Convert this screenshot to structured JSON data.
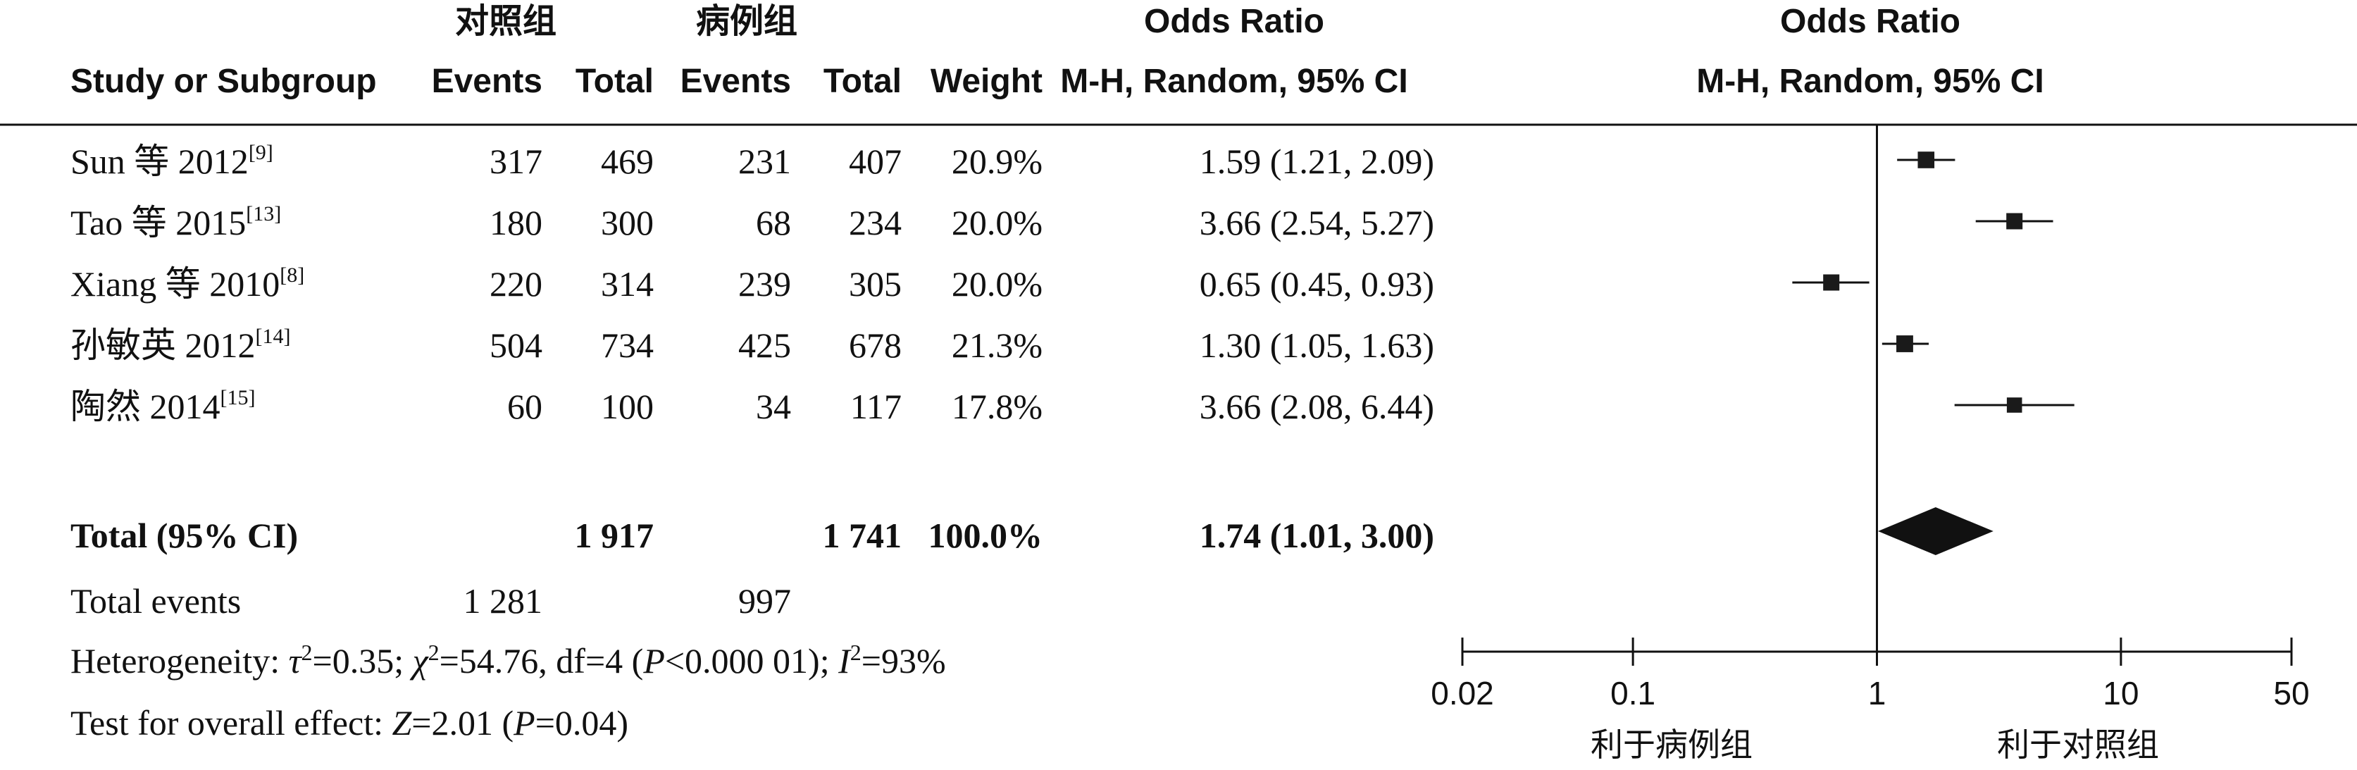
{
  "headers": {
    "study": "Study or Subgroup",
    "group_control": "对照组",
    "group_case": "病例组",
    "events": "Events",
    "total": "Total",
    "weight": "Weight",
    "odds_ratio": "Odds Ratio",
    "method": "M-H, Random, 95% CI"
  },
  "studies": [
    {
      "name": "Sun 等 2012",
      "ref": "[9]",
      "c_events": "317",
      "c_total": "469",
      "e_events": "231",
      "e_total": "407",
      "weight": "20.9%",
      "ci_text": "1.59 (1.21, 2.09)"
    },
    {
      "name": "Tao 等 2015",
      "ref": "[13]",
      "c_events": "180",
      "c_total": "300",
      "e_events": "68",
      "e_total": "234",
      "weight": "20.0%",
      "ci_text": "3.66 (2.54, 5.27)"
    },
    {
      "name": "Xiang 等 2010",
      "ref": "[8]",
      "c_events": "220",
      "c_total": "314",
      "e_events": "239",
      "e_total": "305",
      "weight": "20.0%",
      "ci_text": "0.65 (0.45, 0.93)"
    },
    {
      "name": "孙敏英 2012",
      "ref": "[14]",
      "c_events": "504",
      "c_total": "734",
      "e_events": "425",
      "e_total": "678",
      "weight": "21.3%",
      "ci_text": "1.30 (1.05, 1.63)"
    },
    {
      "name": "陶然 2014",
      "ref": "[15]",
      "c_events": "60",
      "c_total": "100",
      "e_events": "34",
      "e_total": "117",
      "weight": "17.8%",
      "ci_text": "3.66 (2.08, 6.44)"
    }
  ],
  "total": {
    "label": "Total (95% CI)",
    "c_total": "1 917",
    "e_total": "1 741",
    "weight": "100.0%",
    "ci_text": "1.74 (1.01, 3.00)"
  },
  "total_events": {
    "label": "Total events",
    "c_events": "1 281",
    "e_events": "997"
  },
  "heterogeneity": {
    "prefix": "Heterogeneity: ",
    "tau": "τ",
    "tau_value": "=0.35; ",
    "chi": "χ",
    "chi_value": "=54.76, df=4 (",
    "p": "P",
    "p_value": "<0.000 01); ",
    "i": "I",
    "i_value": "=93%",
    "sup": "2"
  },
  "overall_effect": {
    "prefix": "Test for overall effect: ",
    "z": "Z",
    "z_value": "=2.01 (",
    "p": "P",
    "p_value": "=0.04)"
  },
  "axis": {
    "ticks": [
      "0.02",
      "0.1",
      "1",
      "10",
      "50"
    ],
    "favours_left": "利于病例组",
    "favours_right": "利于对照组"
  },
  "colors": {
    "ink": "#111111",
    "marker": "#1a1a1a"
  },
  "chart_data": {
    "type": "forest",
    "scale": "log",
    "xlim": [
      0.02,
      50
    ],
    "x_ticks": [
      0.02,
      0.1,
      1,
      10,
      50
    ],
    "null_line": 1,
    "points": [
      {
        "or": 1.59,
        "lower": 1.21,
        "upper": 2.09,
        "weight": 20.9
      },
      {
        "or": 3.66,
        "lower": 2.54,
        "upper": 5.27,
        "weight": 20.0
      },
      {
        "or": 0.65,
        "lower": 0.45,
        "upper": 0.93,
        "weight": 20.0
      },
      {
        "or": 1.3,
        "lower": 1.05,
        "upper": 1.63,
        "weight": 21.3
      },
      {
        "or": 3.66,
        "lower": 2.08,
        "upper": 6.44,
        "weight": 17.8
      }
    ],
    "pooled": {
      "or": 1.74,
      "lower": 1.01,
      "upper": 3.0
    }
  }
}
